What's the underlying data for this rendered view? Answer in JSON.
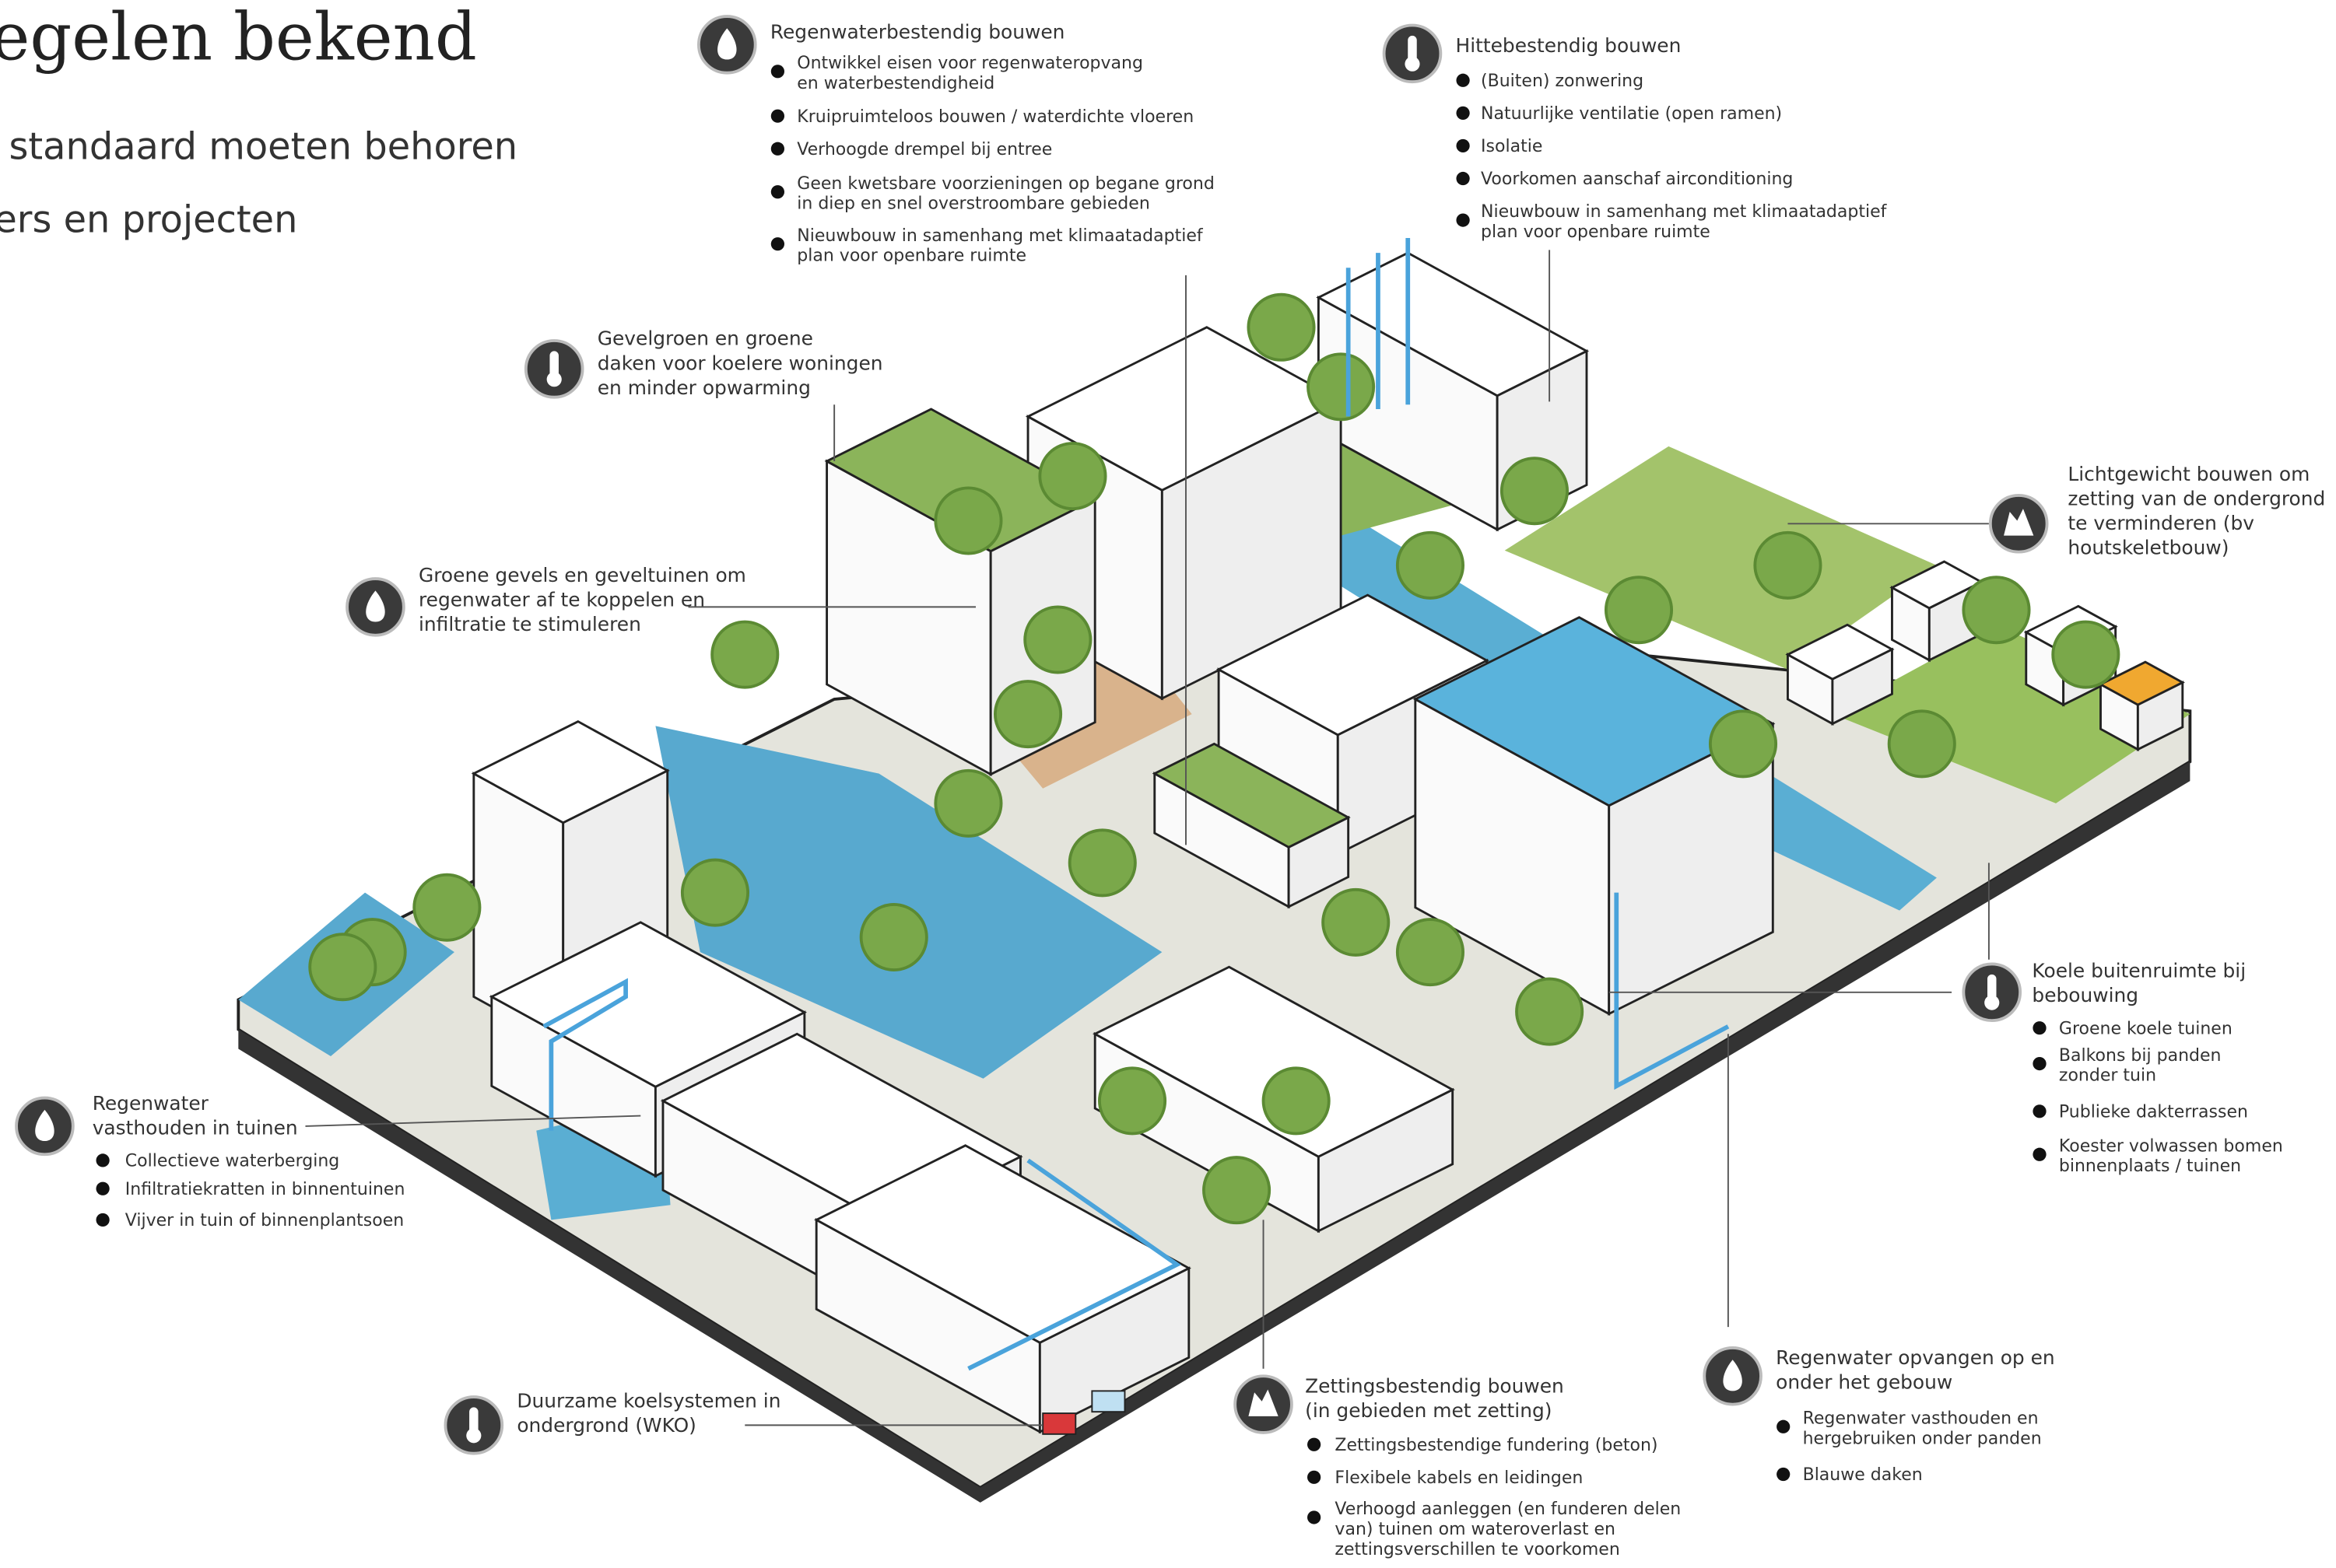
{
  "header": {
    "title": "egelen bekend",
    "lines": [
      "standaard moeten behoren",
      "ers en projecten"
    ]
  },
  "callouts": [
    {
      "title": [
        "Regenwaterbestendig bouwen"
      ],
      "items": [
        [
          "Ontwikkel eisen voor regenwateropvang",
          "en waterbestendigheid"
        ],
        [
          "Kruipruimteloos bouwen / waterdichte vloeren"
        ],
        [
          "Verhoogde drempel bij entree"
        ],
        [
          "Geen kwetsbare voorzieningen op begane grond",
          "in diep en snel overstroombare gebieden"
        ],
        [
          "Nieuwbouw in samenhang met klimaatadaptief",
          "plan voor openbare ruimte"
        ]
      ]
    },
    {
      "title": [
        "Hittebestendig bouwen"
      ],
      "items": [
        [
          "(Buiten) zonwering"
        ],
        [
          "Natuurlijke ventilatie (open ramen)"
        ],
        [
          "Isolatie"
        ],
        [
          "Voorkomen aanschaf airconditioning"
        ],
        [
          "Nieuwbouw in samenhang met klimaatadaptief",
          "plan voor openbare ruimte"
        ]
      ]
    },
    {
      "title": [
        "Gevelgroen en groene",
        "daken voor koelere woningen",
        "en minder opwarming"
      ],
      "items": []
    },
    {
      "title": [
        "Groene gevels en geveltuinen om",
        "regenwater af te koppelen en",
        "infiltratie te stimuleren"
      ],
      "items": []
    },
    {
      "title": [
        "Lichtgewicht bouwen om",
        "zetting van de ondergrond",
        "te verminderen (bv",
        "houtskeletbouw)"
      ],
      "items": []
    },
    {
      "title": [
        "Koele buitenruimte bij",
        "bebouwing"
      ],
      "items": [
        [
          "Groene koele tuinen"
        ],
        [
          "Balkons bij panden",
          "zonder tuin"
        ],
        [
          "Publieke dakterrassen"
        ],
        [
          "Koester volwassen bomen",
          "binnenplaats / tuinen"
        ]
      ]
    },
    {
      "title": [
        "Regenwater",
        "vasthouden in tuinen"
      ],
      "items": [
        [
          "Collectieve waterberging"
        ],
        [
          "Infiltratiekratten in binnentuinen"
        ],
        [
          "Vijver in tuin of binnenplantsoen"
        ]
      ]
    },
    {
      "title": [
        "Duurzame koelsystemen in",
        "ondergrond (WKO)"
      ],
      "items": []
    },
    {
      "title": [
        "Zettingsbestendig bouwen",
        "(in gebieden met zetting)"
      ],
      "items": [
        [
          "Zettingsbestendige fundering (beton)"
        ],
        [
          "Flexibele kabels en leidingen"
        ],
        [
          "Verhoogd aanleggen (en funderen delen",
          "van) tuinen om wateroverlast en",
          "zettingsverschillen te voorkomen"
        ]
      ]
    },
    {
      "title": [
        "Regenwater opvangen op en",
        "onder het gebouw"
      ],
      "items": [
        [
          "Regenwater vasthouden en",
          "hergebruiken onder panden"
        ],
        [
          "Blauwe daken"
        ]
      ]
    }
  ]
}
